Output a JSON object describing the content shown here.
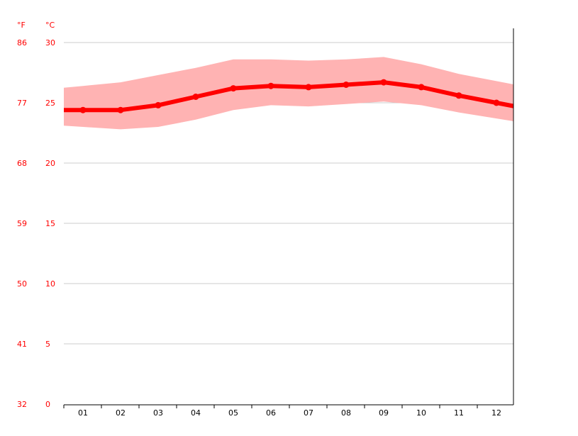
{
  "chart_data": {
    "type": "line",
    "title": "",
    "xlabel": "",
    "ylabel": "",
    "units": {
      "fahrenheit": "°F",
      "celsius": "°C"
    },
    "categories": [
      "01",
      "02",
      "03",
      "04",
      "05",
      "06",
      "07",
      "08",
      "09",
      "10",
      "11",
      "12"
    ],
    "ylim": [
      0,
      30
    ],
    "y_ticks_c": [
      "30",
      "25",
      "20",
      "15",
      "10",
      "5",
      "0"
    ],
    "y_ticks_f": [
      "86",
      "77",
      "68",
      "59",
      "50",
      "41",
      "32"
    ],
    "grid": true,
    "series": [
      {
        "values": [
          24.4,
          24.4,
          24.8,
          25.5,
          26.2,
          26.4,
          26.3,
          26.5,
          26.7,
          26.3,
          25.6,
          25.0
        ],
        "color": "#ff0000"
      }
    ],
    "band": {
      "max": [
        26.4,
        26.7,
        27.3,
        27.9,
        28.6,
        28.6,
        28.5,
        28.6,
        28.8,
        28.2,
        27.4,
        26.8
      ],
      "min": [
        23.0,
        22.8,
        23.0,
        23.6,
        24.4,
        24.8,
        24.7,
        24.9,
        25.1,
        24.8,
        24.2,
        23.7
      ],
      "color": "#ffb3b3"
    },
    "colors": {
      "line": "#ff0000",
      "band": "#ffb3b3",
      "grid": "#cccccc",
      "y_labels": "#ff0000",
      "x_labels": "#000000",
      "axis": "#000000"
    }
  }
}
